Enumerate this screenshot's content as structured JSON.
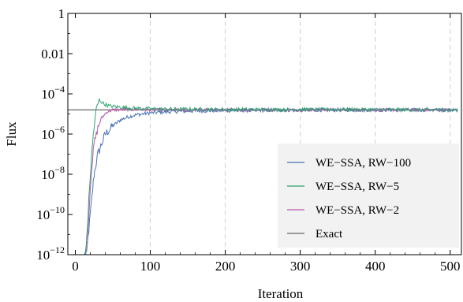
{
  "chart_data": {
    "type": "line",
    "xlabel": "Iteration",
    "ylabel": "Flux",
    "xlim": [
      -10,
      515
    ],
    "ylim_log10": [
      -12,
      0
    ],
    "y_scale": "log",
    "x_ticks": [
      0,
      100,
      200,
      300,
      400,
      500
    ],
    "x_tick_labels": [
      "0",
      "100",
      "200",
      "300",
      "400",
      "500"
    ],
    "y_ticks_log10": [
      0,
      -2,
      -4,
      -6,
      -8,
      -10,
      -12
    ],
    "y_tick_labels": [
      {
        "base": "1",
        "exp": ""
      },
      {
        "base": "0.01",
        "exp": ""
      },
      {
        "base": "10",
        "exp": "−4"
      },
      {
        "base": "10",
        "exp": "−6"
      },
      {
        "base": "10",
        "exp": "−8"
      },
      {
        "base": "10",
        "exp": "−10"
      },
      {
        "base": "10",
        "exp": "−12"
      }
    ],
    "vertical_gridlines_at": [
      100,
      200,
      300,
      400,
      500
    ],
    "legend_position": "right",
    "series": [
      {
        "name": "WE−SSA, RW−100",
        "color": "#4a74b4",
        "points": [
          [
            12,
            -12.0
          ],
          [
            16,
            -11.5
          ],
          [
            20,
            -10.0
          ],
          [
            25,
            -8.0
          ],
          [
            30,
            -7.0
          ],
          [
            40,
            -6.0
          ],
          [
            50,
            -5.6
          ],
          [
            60,
            -5.3
          ],
          [
            70,
            -5.15
          ],
          [
            80,
            -5.05
          ],
          [
            100,
            -4.95
          ],
          [
            120,
            -4.9
          ],
          [
            160,
            -4.85
          ],
          [
            250,
            -4.82
          ],
          [
            350,
            -4.8
          ],
          [
            450,
            -4.8
          ],
          [
            510,
            -4.8
          ]
        ]
      },
      {
        "name": "WE−SSA, RW−5",
        "color": "#2ea36f",
        "points": [
          [
            14,
            -12.0
          ],
          [
            17,
            -10.0
          ],
          [
            20,
            -8.0
          ],
          [
            24,
            -6.0
          ],
          [
            28,
            -4.7
          ],
          [
            32,
            -4.3
          ],
          [
            38,
            -4.5
          ],
          [
            45,
            -4.6
          ],
          [
            55,
            -4.65
          ],
          [
            70,
            -4.7
          ],
          [
            100,
            -4.75
          ],
          [
            200,
            -4.78
          ],
          [
            350,
            -4.78
          ],
          [
            510,
            -4.8
          ]
        ]
      },
      {
        "name": "WE−SSA, RW−2",
        "color": "#b85ab0",
        "points": [
          [
            15,
            -12.0
          ],
          [
            18,
            -10.0
          ],
          [
            21,
            -8.0
          ],
          [
            25,
            -6.5
          ],
          [
            30,
            -5.7
          ],
          [
            35,
            -5.2
          ],
          [
            42,
            -4.9
          ],
          [
            50,
            -4.8
          ],
          [
            70,
            -4.78
          ],
          [
            120,
            -4.8
          ],
          [
            250,
            -4.8
          ],
          [
            400,
            -4.8
          ],
          [
            510,
            -4.8
          ]
        ]
      },
      {
        "name": "Exact",
        "color": "#666666",
        "points": [
          [
            -10,
            -4.8
          ],
          [
            510,
            -4.8
          ]
        ]
      }
    ]
  }
}
